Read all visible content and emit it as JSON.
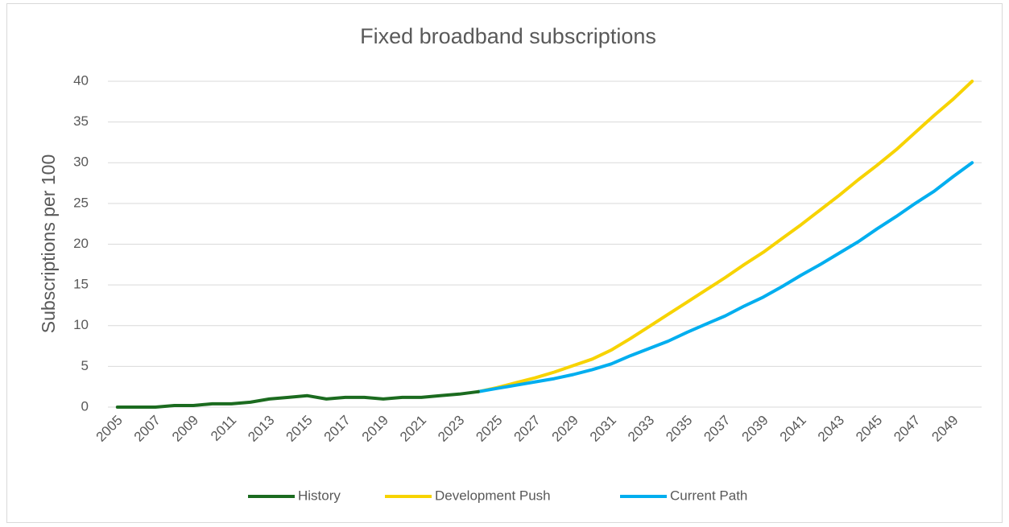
{
  "chart_data": {
    "type": "line",
    "title": "Fixed broadband subscriptions",
    "y_label": "Subscriptions per 100",
    "categories": [
      "2005",
      null,
      "2007",
      null,
      "2009",
      null,
      "2011",
      null,
      "2013",
      null,
      "2015",
      null,
      "2017",
      null,
      "2019",
      null,
      "2021",
      null,
      "2023",
      null,
      "2025",
      null,
      "2027",
      null,
      "2029",
      null,
      "2031",
      null,
      "2033",
      null,
      "2035",
      null,
      "2037",
      null,
      "2039",
      null,
      "2041",
      null,
      "2043",
      null,
      "2045",
      null,
      "2047",
      null,
      "2049",
      null
    ],
    "series": [
      {
        "name": "History",
        "color": "#1b6b1f",
        "values": [
          0,
          0,
          0,
          0.2,
          0.2,
          0.4,
          0.4,
          0.6,
          1.0,
          1.2,
          1.4,
          1.0,
          1.2,
          1.2,
          1.0,
          1.2,
          1.2,
          1.4,
          1.6,
          1.9,
          null,
          null,
          null,
          null,
          null,
          null,
          null,
          null,
          null,
          null,
          null,
          null,
          null,
          null,
          null,
          null,
          null,
          null,
          null,
          null,
          null,
          null,
          null,
          null,
          null,
          null
        ]
      },
      {
        "name": "Development Push",
        "color": "#f7d300",
        "values": [
          null,
          null,
          null,
          null,
          null,
          null,
          null,
          null,
          null,
          null,
          null,
          null,
          null,
          null,
          null,
          null,
          null,
          null,
          null,
          1.9,
          2.4,
          3.0,
          3.6,
          4.3,
          5.1,
          5.9,
          7.0,
          8.4,
          9.9,
          11.4,
          12.9,
          14.4,
          15.9,
          17.5,
          19.0,
          20.7,
          22.4,
          24.2,
          26.0,
          27.9,
          29.7,
          31.6,
          33.7,
          35.8,
          37.8,
          40.0
        ]
      },
      {
        "name": "Current Path",
        "color": "#00aeef",
        "values": [
          null,
          null,
          null,
          null,
          null,
          null,
          null,
          null,
          null,
          null,
          null,
          null,
          null,
          null,
          null,
          null,
          null,
          null,
          null,
          1.9,
          2.3,
          2.7,
          3.1,
          3.5,
          4.0,
          4.6,
          5.3,
          6.3,
          7.2,
          8.1,
          9.2,
          10.2,
          11.2,
          12.4,
          13.5,
          14.8,
          16.2,
          17.5,
          18.9,
          20.3,
          21.9,
          23.4,
          25.0,
          26.5,
          28.3,
          30.0
        ]
      }
    ],
    "ylim": [
      0,
      40
    ],
    "yticks": [
      0,
      5,
      10,
      15,
      20,
      25,
      30,
      35,
      40
    ],
    "grid": true,
    "legend": "bottom"
  }
}
